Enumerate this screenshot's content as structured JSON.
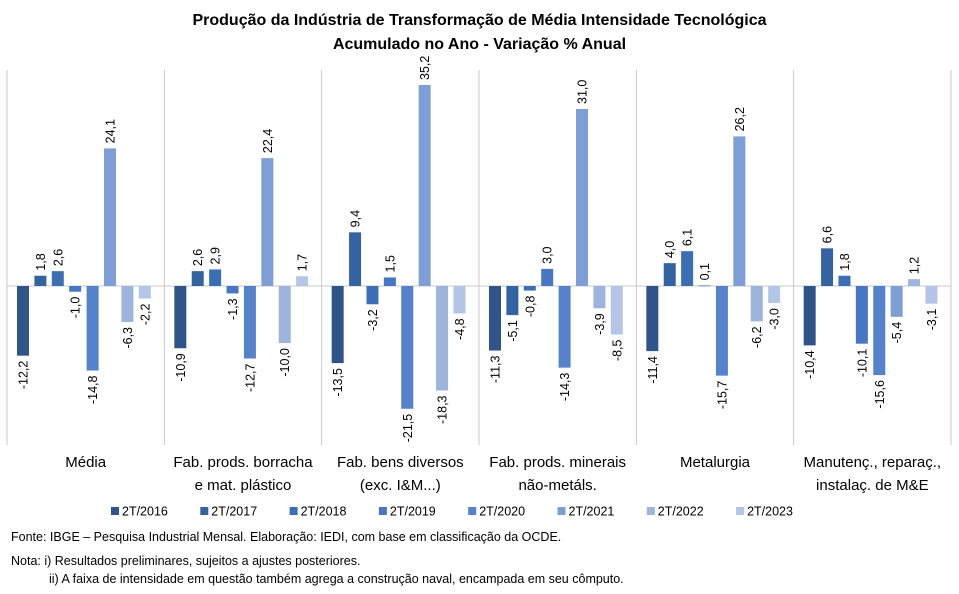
{
  "chart_data": {
    "type": "bar",
    "title": "Produção da Indústria de Transformação de Média Intensidade Tecnológica",
    "subtitle": "Acumulado no Ano - Variação % Anual",
    "categories": [
      [
        "Média"
      ],
      [
        "Fab. prods. borracha",
        "e mat. plástico"
      ],
      [
        "Fab. bens diversos",
        "(exc. I&M...)"
      ],
      [
        "Fab. prods. minerais",
        "não-metáls."
      ],
      [
        "Metalurgia"
      ],
      [
        "Manutenç., reparaç.,",
        "instalaç. de M&E"
      ]
    ],
    "series": [
      {
        "name": "2T/2016",
        "color": "#2E5489",
        "labels": [
          "-12,2",
          "-10,9",
          "-13,5",
          "-11,3",
          "-11,4",
          "-10,4"
        ],
        "values": [
          -12.2,
          -10.9,
          -13.5,
          -11.3,
          -11.4,
          -10.4
        ]
      },
      {
        "name": "2T/2017",
        "color": "#3463A2",
        "labels": [
          "1,8",
          "2,6",
          "9,4",
          "-5,1",
          "4,0",
          "6,6"
        ],
        "values": [
          1.8,
          2.6,
          9.4,
          -5.1,
          4.0,
          6.6
        ]
      },
      {
        "name": "2T/2018",
        "color": "#3B6FB5",
        "labels": [
          "2,6",
          "2,9",
          "-3,2",
          "-0,8",
          "6,1",
          "1,8"
        ],
        "values": [
          2.6,
          2.9,
          -3.2,
          -0.8,
          6.1,
          1.8
        ]
      },
      {
        "name": "2T/2019",
        "color": "#4676C4",
        "labels": [
          "-1,0",
          "-1,3",
          "1,5",
          "3,0",
          "0,1",
          "-10,1"
        ],
        "values": [
          -1.0,
          -1.3,
          1.5,
          3.0,
          0.1,
          -10.1
        ]
      },
      {
        "name": "2T/2020",
        "color": "#5583CB",
        "labels": [
          "-14,8",
          "-12,7",
          "-21,5",
          "-14,3",
          "-15,7",
          "-15,6"
        ],
        "values": [
          -14.8,
          -12.7,
          -21.5,
          -14.3,
          -15.7,
          -15.6
        ]
      },
      {
        "name": "2T/2021",
        "color": "#7E9FD5",
        "labels": [
          "24,1",
          "22,4",
          "35,2",
          "31,0",
          "26,2",
          "-5,4"
        ],
        "values": [
          24.1,
          22.4,
          35.2,
          31.0,
          26.2,
          -5.4
        ]
      },
      {
        "name": "2T/2022",
        "color": "#9DB4DD",
        "labels": [
          "-6,3",
          "-10,0",
          "-18,3",
          "-3,9",
          "-6,2",
          "1,2"
        ],
        "values": [
          -6.3,
          -10.0,
          -18.3,
          -3.9,
          -6.2,
          1.2
        ]
      },
      {
        "name": "2T/2023",
        "color": "#B3C6E7",
        "labels": [
          "-2,2",
          "1,7",
          "-4,8",
          "-8,5",
          "-3,0",
          "-3,1"
        ],
        "values": [
          -2.2,
          1.7,
          -4.8,
          -8.5,
          -3.0,
          -3.1
        ]
      }
    ],
    "legend": "bottom",
    "grid": false
  },
  "footer": {
    "source": "Fonte: IBGE – Pesquisa Industrial Mensal. Elaboração: IEDI, com base em classificação da OCDE.",
    "note1": "Nota: i) Resultados preliminares, sujeitos a ajustes posteriores.",
    "note2": "ii) A faixa de intensidade em questão também agrega a construção naval, encampada em seu cômputo."
  }
}
